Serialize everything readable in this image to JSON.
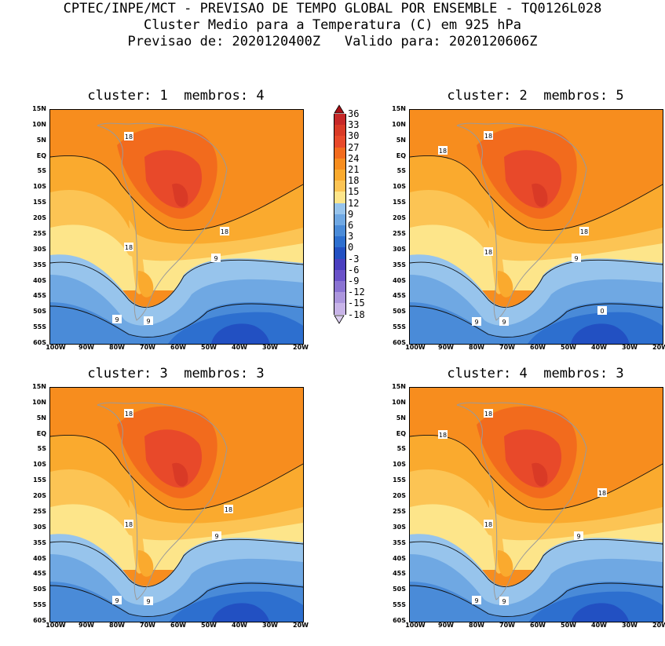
{
  "header": {
    "line1": "CPTEC/INPE/MCT - PREVISAO DE TEMPO GLOBAL POR ENSEMBLE - TQ0126L028",
    "line2": "Cluster Medio para a Temperatura (C) em 925 hPa",
    "line3": "Previsao de: 2020120400Z   Valido para: 2020120606Z"
  },
  "panels": [
    {
      "title": "cluster: 1  membros: 4",
      "contour_labels": [
        {
          "text": "18"
        },
        {
          "text": "18"
        },
        {
          "text": "18"
        },
        {
          "text": "9"
        },
        {
          "text": "9"
        },
        {
          "text": "9"
        }
      ]
    },
    {
      "title": "cluster: 2  membros: 5",
      "contour_labels": [
        {
          "text": "18"
        },
        {
          "text": "18"
        },
        {
          "text": "18"
        },
        {
          "text": "18"
        },
        {
          "text": "9"
        },
        {
          "text": "9"
        },
        {
          "text": "9"
        },
        {
          "text": "0"
        }
      ]
    },
    {
      "title": "cluster: 3  membros: 3",
      "contour_labels": [
        {
          "text": "18"
        },
        {
          "text": "18"
        },
        {
          "text": "18"
        },
        {
          "text": "9"
        },
        {
          "text": "9"
        },
        {
          "text": "9"
        }
      ]
    },
    {
      "title": "cluster: 4  membros: 3",
      "contour_labels": [
        {
          "text": "18"
        },
        {
          "text": "18"
        },
        {
          "text": "18"
        },
        {
          "text": "18"
        },
        {
          "text": "9"
        },
        {
          "text": "9"
        },
        {
          "text": "9"
        }
      ]
    }
  ],
  "lat_labels": [
    "15N",
    "10N",
    "5N",
    "EQ",
    "5S",
    "10S",
    "15S",
    "20S",
    "25S",
    "30S",
    "35S",
    "40S",
    "45S",
    "50S",
    "55S",
    "60S"
  ],
  "lon_labels": [
    "100W",
    "90W",
    "80W",
    "70W",
    "60W",
    "50W",
    "40W",
    "30W",
    "20W"
  ],
  "legend": {
    "levels": [
      "36",
      "33",
      "30",
      "27",
      "24",
      "21",
      "18",
      "15",
      "12",
      "9",
      "6",
      "3",
      "0",
      "-3",
      "-6",
      "-9",
      "-12",
      "-15",
      "-18"
    ],
    "colors": [
      "#a50f15",
      "#c62828",
      "#d93a26",
      "#e8492a",
      "#f26b1d",
      "#f78d1e",
      "#faaa2e",
      "#fcc454",
      "#fde58a",
      "#97c4ec",
      "#6fa8e3",
      "#4a8bd8",
      "#2d6fcf",
      "#2250c2",
      "#4a3fbf",
      "#6a52c8",
      "#8a73d2",
      "#ac96dd",
      "#c8b4e8",
      "#dccff0"
    ]
  }
}
